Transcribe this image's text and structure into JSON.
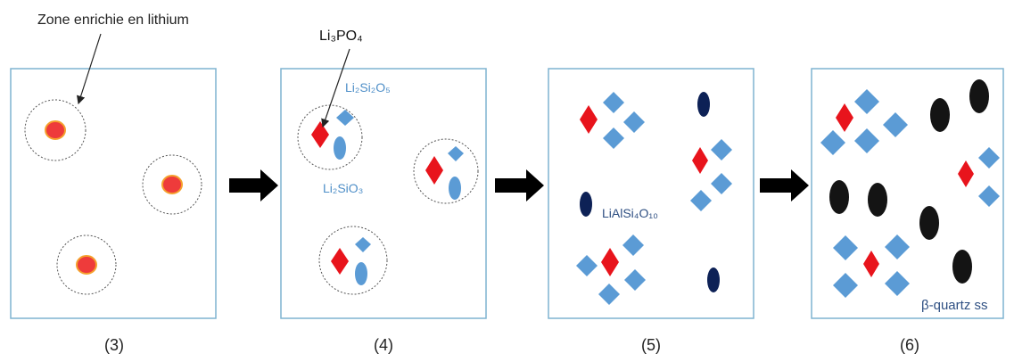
{
  "annotations": {
    "lithium_zone": "Zone enrichie en lithium",
    "li3po4": "Li₃PO₄"
  },
  "panels": [
    {
      "caption": "(3)"
    },
    {
      "caption": "(4)",
      "labels": [
        "Li₂Si₂O₅",
        "Li₂SiO₃"
      ]
    },
    {
      "caption": "(5)",
      "labels": [
        "LiAlSi₄O₁₀"
      ]
    },
    {
      "caption": "(6)",
      "labels": [
        "β-quartz ss"
      ]
    }
  ],
  "colors": {
    "panel_border": "#7fb3d0",
    "red": "#e8141c",
    "blue": "#5b9bd5",
    "navy": "#0d2156",
    "black": "#141414",
    "nucleus_red": "#ee3b3b",
    "nucleus_rim": "#f5a02d",
    "label_blue": "#4f8fc8"
  }
}
